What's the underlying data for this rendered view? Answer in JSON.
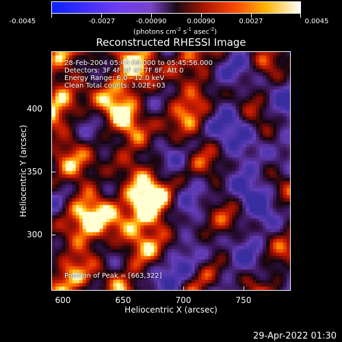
{
  "colorbar": {
    "ticks": [
      "-0.0045",
      "-0.0027",
      "-0.00090",
      "0.00090",
      "0.0027",
      "0.0045"
    ],
    "units_prefix": "(photons cm",
    "units_exp1": "-2",
    "units_mid": " s",
    "units_exp2": "-1",
    "units_end": " asec",
    "units_exp3": "-2",
    "units_close": ")"
  },
  "title": "Reconstructed RHESSI Image",
  "plot": {
    "date_range": "28-Feb-2004 05:45:08.000 to 05:45:56.000",
    "detectors": "Detectors: 3F 4F 5F 6F 7F 8F, Att 0",
    "energy_range": "Energy Range: 6.0 - 12.0 keV",
    "clean_text": "Clean    Total counts: 3.02E+03",
    "peak_text": "Position of Peak = [663,322]"
  },
  "axes": {
    "x_ticks": [
      "600",
      "650",
      "700",
      "750"
    ],
    "y_ticks": [
      "400",
      "350",
      "300"
    ],
    "xlabel": "Heliocentric X (arcsec)",
    "ylabel": "Heliocentric Y (arcsec)"
  },
  "footer": "29-Apr-2022 01:30",
  "chart_data": {
    "type": "heatmap",
    "title": "Reconstructed RHESSI Image",
    "xlabel": "Heliocentric X (arcsec)",
    "ylabel": "Heliocentric Y (arcsec)",
    "xlim": [
      595,
      792
    ],
    "ylim": [
      253,
      453
    ],
    "color_range": [
      -0.0045,
      0.0045
    ],
    "colorbar_ticks": [
      -0.0045,
      -0.0027,
      -0.0009,
      0.0009,
      0.0027,
      0.0045
    ],
    "peak": [
      663,
      322
    ],
    "colors": {
      "negative": "#5b2fb2",
      "dark": "#170611",
      "positive": "#d92b00",
      "peak": "#fff6a8"
    }
  }
}
